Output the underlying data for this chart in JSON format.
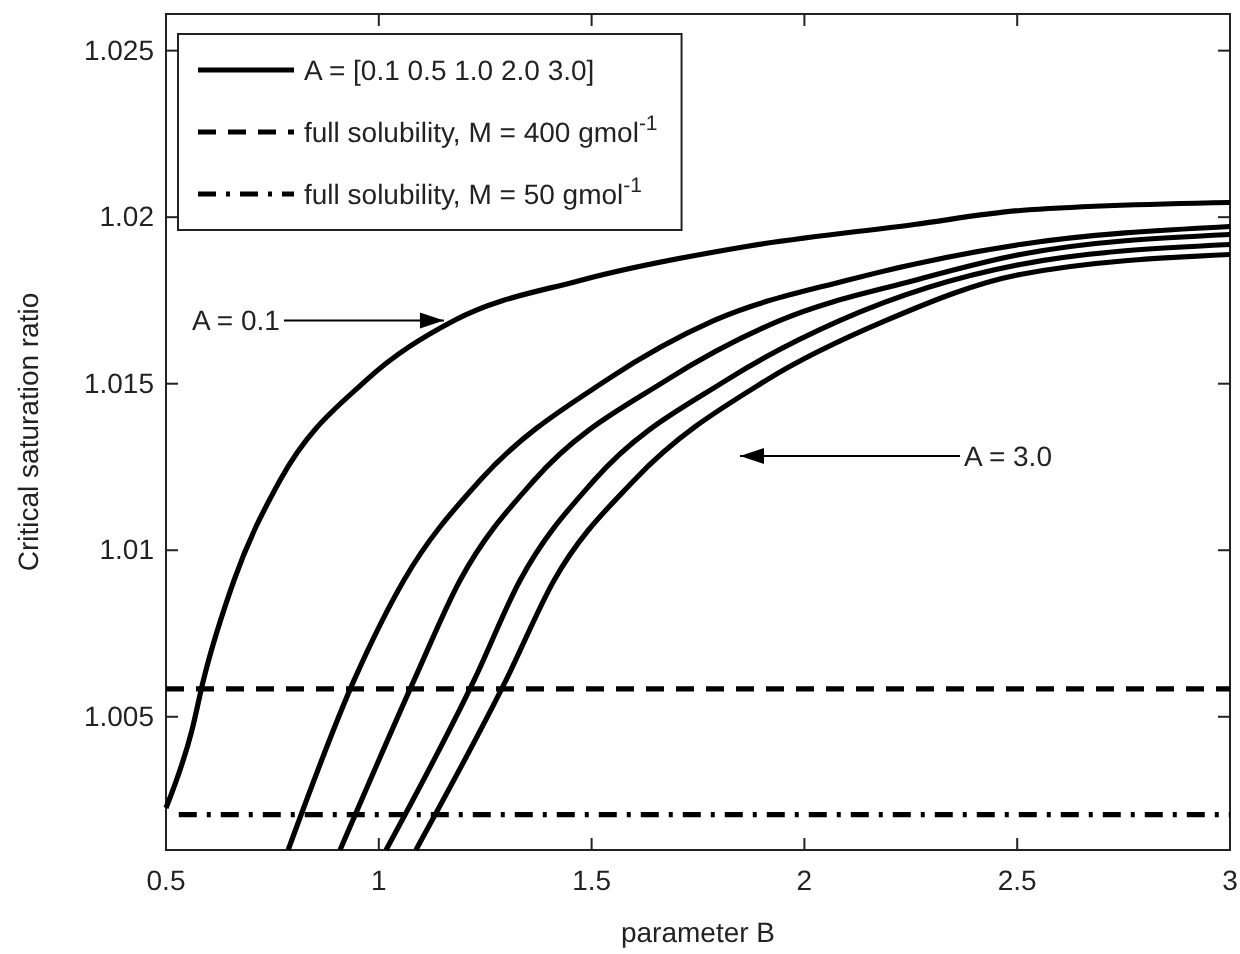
{
  "chart_data": {
    "type": "line",
    "xlabel": "parameter B",
    "ylabel": "Critical saturation ratio",
    "xlim": [
      0.5,
      3
    ],
    "ylim": [
      1.001,
      1.0261
    ],
    "xticks": [
      0.5,
      1,
      1.5,
      2,
      2.5,
      3
    ],
    "yticks": [
      1.005,
      1.01,
      1.015,
      1.02,
      1.025
    ],
    "grid": false,
    "legend": "top left",
    "marker": "none",
    "series": [
      {
        "name": "A = [0.1 0.5 1.0 2.0 3.0]",
        "color": "#000000",
        "line_style": "solid",
        "x": [
          0.5,
          0.561,
          0.588,
          0.66,
          0.768,
          0.97,
          1.177,
          1.473,
          1.863,
          2.258,
          2.507,
          3.0
        ],
        "values": [
          1.00226,
          1.0046,
          1.0061,
          1.0091,
          1.0121,
          1.0151,
          1.0169,
          1.0181,
          1.01912,
          1.01978,
          1.0202,
          1.02044
        ]
      },
      {
        "color": "#000000",
        "line_style": "solid",
        "x": [
          0.787,
          0.942,
          1.059,
          1.238,
          1.534,
          1.788,
          2.098,
          2.507,
          3.0
        ],
        "values": [
          1.001,
          1.0061,
          1.0091,
          1.0121,
          1.0151,
          1.0169,
          1.0181,
          1.01918,
          1.01972
        ]
      },
      {
        "color": "#000000",
        "line_style": "solid",
        "x": [
          0.909,
          1.083,
          1.191,
          1.365,
          1.675,
          1.943,
          2.258,
          2.507,
          3.0
        ],
        "values": [
          1.001,
          1.0061,
          1.0091,
          1.0121,
          1.0151,
          1.0169,
          1.0181,
          1.01888,
          1.01948
        ]
      },
      {
        "color": "#000000",
        "line_style": "solid",
        "x": [
          1.017,
          1.224,
          1.332,
          1.506,
          1.816,
          2.084,
          2.507,
          3.0
        ],
        "values": [
          1.001,
          1.0061,
          1.0091,
          1.0121,
          1.0151,
          1.0169,
          1.01858,
          1.01918
        ]
      },
      {
        "color": "#000000",
        "line_style": "solid",
        "x": [
          1.087,
          1.299,
          1.412,
          1.6,
          1.91,
          2.192,
          2.507,
          3.0
        ],
        "values": [
          1.001,
          1.0061,
          1.0091,
          1.0121,
          1.0151,
          1.0169,
          1.01828,
          1.01888
        ]
      },
      {
        "name": "full solubility, M = 400 gmol$^{-1}$",
        "color": "#000000",
        "line_style": "dashed",
        "x": [
          0.5,
          3.0
        ],
        "values": [
          1.00584,
          1.00584
        ]
      },
      {
        "name": "full solubility, M = 50 gmol$^{-1}$",
        "color": "#000000",
        "line_style": "dashdot",
        "x": [
          0.53,
          3.0
        ],
        "values": [
          1.00206,
          1.00206
        ]
      }
    ],
    "annotations": [
      {
        "text": "A = 0.1",
        "x": 1.153,
        "y": 1.0169
      },
      "A = 3.0"
    ]
  }
}
